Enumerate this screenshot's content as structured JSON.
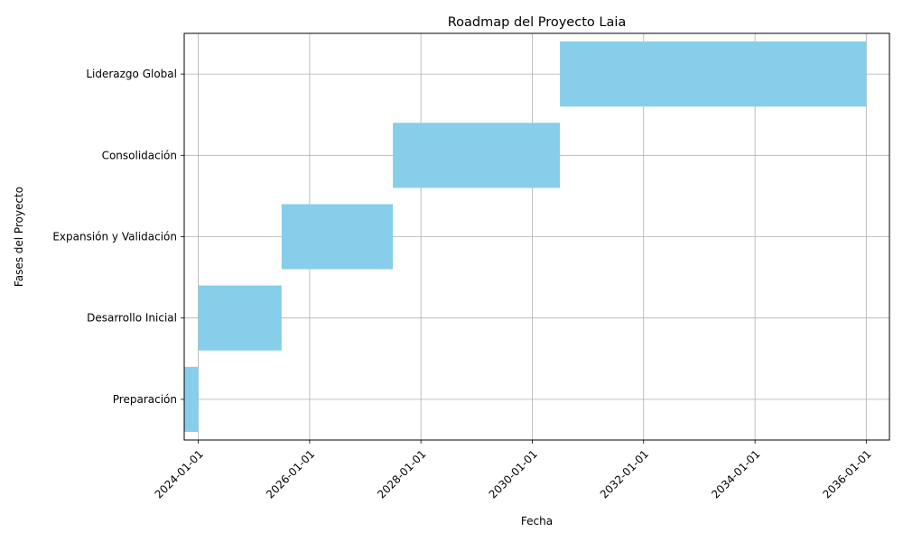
{
  "chart_data": {
    "type": "bar",
    "orientation": "horizontal-gantt",
    "title": "Roadmap del Proyecto Laia",
    "xlabel": "Fecha",
    "ylabel": "Fases del Proyecto",
    "x_scale": "date",
    "xlim": [
      "2023-10-01",
      "2036-06-01"
    ],
    "x_ticks": [
      "2024-01-01",
      "2026-01-01",
      "2028-01-01",
      "2030-01-01",
      "2032-01-01",
      "2034-01-01",
      "2036-01-01"
    ],
    "categories": [
      "Preparación",
      "Desarrollo Inicial",
      "Expansión y Validación",
      "Consolidación",
      "Liderazgo Global"
    ],
    "series": [
      {
        "start": [
          "2023-10-01",
          "2024-01-01",
          "2025-07-01",
          "2027-07-01",
          "2030-07-01"
        ],
        "end": [
          "2024-01-01",
          "2025-07-01",
          "2027-07-01",
          "2030-07-01",
          "2036-01-01"
        ]
      }
    ],
    "bar_color": "#87ceeb",
    "grid": true
  }
}
